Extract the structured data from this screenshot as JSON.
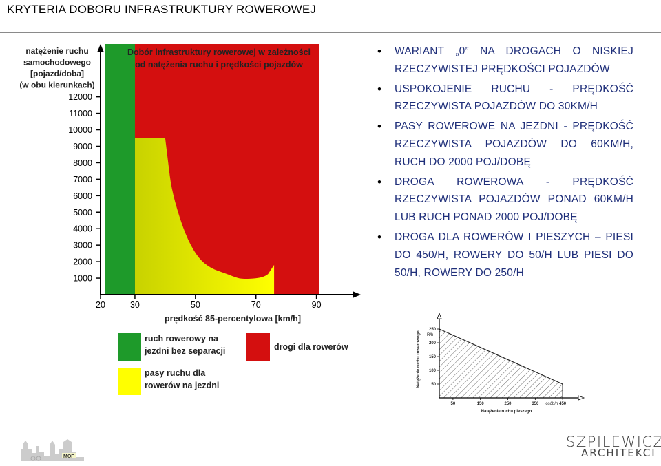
{
  "page": {
    "title": "KRYTERIA DOBORU INFRASTRUKTURY ROWEROWEJ"
  },
  "bullets": [
    "WARIANT „0” NA DROGACH O NISKIEJ RZECZYWISTEJ PRĘDKOŚCI POJAZDÓW",
    "USPOKOJENIE RUCHU - PRĘDKOŚĆ RZECZYWISTA POJAZDÓW DO 30KM/H",
    "PASY ROWEROWE NA JEZDNI - PRĘDKOŚĆ RZECZYWISTA POJAZDÓW DO 60KM/H, RUCH DO 2000 POJ/DOBĘ",
    "DROGA ROWEROWA - PRĘDKOŚĆ RZECZYWISTA POJAZDÓW PONAD 60KM/H LUB RUCH PONAD 2000 POJ/DOBĘ",
    "DROGA DLA ROWERÓW I PIESZYCH – PIESI DO 450/H, ROWERY DO 50/H LUB PIESI DO 50/H, ROWERY DO 250/H"
  ],
  "chart_data": [
    {
      "type": "area",
      "title": "Dobór infrastruktury rowerowej w zależności od natężenia ruchu i prędkości pojazdów",
      "ylabel_lines": [
        "natężenie ruchu",
        "samochodowego",
        "[pojazd/doba]",
        "(w obu kierunkach)"
      ],
      "xlabel": "prędkość 85-percentylowa [km/h]",
      "x_ticks": [
        20,
        30,
        50,
        70,
        90
      ],
      "y_ticks": [
        1000,
        2000,
        3000,
        4000,
        5000,
        6000,
        7000,
        8000,
        9000,
        10000,
        11000,
        12000
      ],
      "x_range": [
        20,
        91
      ],
      "y_range": [
        0,
        15200
      ],
      "regions": [
        {
          "name": "ruch rowerowy na jezdni bez separacji",
          "color": "#1e9a2a"
        },
        {
          "name": "pasy ruchu dla rowerów na jezdni",
          "color": "#ffff00"
        },
        {
          "name": "drogi dla rowerów",
          "color": "#d40f0f"
        }
      ],
      "boundaries": {
        "green_max_speed": 30,
        "yellow_red_curve": [
          [
            30,
            15200
          ],
          [
            30,
            9500
          ],
          [
            40,
            9500
          ],
          [
            41,
            8000
          ],
          [
            42,
            6500
          ],
          [
            44.5,
            4800
          ],
          [
            47.5,
            3300
          ],
          [
            51,
            2200
          ],
          [
            55,
            1600
          ],
          [
            60,
            1280
          ],
          [
            64,
            1000
          ],
          [
            66,
            950
          ],
          [
            70,
            980
          ],
          [
            73,
            1100
          ],
          [
            75,
            1400
          ],
          [
            76,
            1800
          ],
          [
            76,
            0
          ]
        ]
      },
      "legend": [
        {
          "label_lines": [
            "ruch rowerowy na",
            "jezdni bez separacji"
          ],
          "color": "#1e9a2a"
        },
        {
          "label_lines": [
            "drogi dla rowerów"
          ],
          "color": "#d40f0f"
        },
        {
          "label_lines": [
            "pasy ruchu dla",
            "rowerów na jezdni"
          ],
          "color": "#ffff00"
        }
      ]
    },
    {
      "type": "area",
      "ylabel": "Natężenie ruchu rowerowego",
      "xlabel": "Natężenie ruchu pieszego",
      "y_unit": "R/h",
      "x_unit": "osób/h",
      "x_ticks": [
        50,
        150,
        250,
        350,
        450
      ],
      "y_ticks": [
        50,
        100,
        150,
        200,
        250
      ],
      "x_range": [
        0,
        520
      ],
      "y_range": [
        0,
        300
      ],
      "series": [
        {
          "x": [
            0,
            450
          ],
          "y": [
            250,
            50
          ]
        }
      ]
    }
  ],
  "footer": {
    "left_logo": "MOF",
    "right_logo_line1": "SZPILEWICZ",
    "right_logo_line2": "ARCHITEKCI"
  },
  "colors": {
    "bullet_text": "#1f2f7a",
    "green": "#1e9a2a",
    "yellow": "#ffff00",
    "red": "#d40f0f"
  }
}
